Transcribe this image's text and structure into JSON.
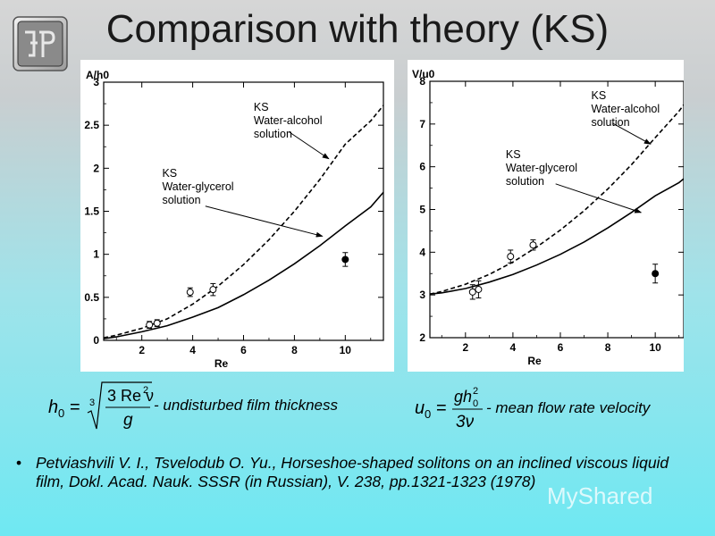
{
  "title": "Comparison with theory (KS)",
  "chart_data": [
    {
      "type": "line",
      "ylabel": "A/h0",
      "xlabel": "Re",
      "xlim": [
        0.5,
        11.5
      ],
      "ylim": [
        0,
        3
      ],
      "xticks": [
        2,
        4,
        6,
        8,
        10
      ],
      "yticks": [
        0,
        0.5,
        1,
        1.5,
        2,
        2.5,
        3
      ],
      "ytick_labels": [
        "0",
        "0.5",
        "1",
        "1.5",
        "2",
        "2.5",
        "3"
      ],
      "series": [
        {
          "style": "dashed",
          "x": [
            0.5,
            1,
            2,
            3,
            4,
            5,
            6,
            7,
            8,
            9,
            10,
            11,
            11.5
          ],
          "y": [
            0.03,
            0.06,
            0.14,
            0.25,
            0.42,
            0.63,
            0.88,
            1.17,
            1.5,
            1.87,
            2.28,
            2.55,
            2.73
          ]
        },
        {
          "style": "solid",
          "x": [
            0.5,
            1,
            2,
            3,
            4,
            5,
            6,
            7,
            8,
            9,
            10,
            11,
            11.5
          ],
          "y": [
            0.02,
            0.04,
            0.1,
            0.17,
            0.27,
            0.38,
            0.53,
            0.7,
            0.89,
            1.1,
            1.33,
            1.55,
            1.72
          ]
        }
      ],
      "points_open": [
        {
          "x": 2.3,
          "y": 0.18,
          "err": 0.04
        },
        {
          "x": 2.6,
          "y": 0.2,
          "err": 0.04
        },
        {
          "x": 3.9,
          "y": 0.56,
          "err": 0.05
        },
        {
          "x": 4.8,
          "y": 0.59,
          "err": 0.07
        }
      ],
      "points_filled": [
        {
          "x": 10.0,
          "y": 0.94,
          "err": 0.08
        }
      ],
      "annotations": [
        {
          "lines": [
            "KS",
            "Water-alcohol",
            "solution"
          ],
          "x": 6.4,
          "y": 2.67,
          "ax": 7.8,
          "ay": 2.42,
          "tx": 9.35,
          "ty": 2.11
        },
        {
          "lines": [
            "KS",
            "Water-glycerol",
            "solution"
          ],
          "x": 2.8,
          "y": 1.9,
          "ax": 4.5,
          "ay": 1.56,
          "tx": 9.1,
          "ty": 1.21
        }
      ]
    },
    {
      "type": "line",
      "ylabel": "V/u0",
      "xlabel": "Re",
      "xlim": [
        0.5,
        11.2
      ],
      "ylim": [
        2,
        8
      ],
      "xticks": [
        2,
        4,
        6,
        8,
        10
      ],
      "yticks": [
        2,
        3,
        4,
        5,
        6,
        7,
        8
      ],
      "ytick_labels": [
        "2",
        "3",
        "4",
        "5",
        "6",
        "7",
        "8"
      ],
      "series": [
        {
          "style": "dashed",
          "x": [
            0.5,
            1,
            2,
            3,
            4,
            5,
            6,
            7,
            8,
            9,
            10,
            11,
            11.2
          ],
          "y": [
            3.02,
            3.08,
            3.25,
            3.48,
            3.77,
            4.12,
            4.52,
            4.97,
            5.48,
            6.05,
            6.68,
            7.3,
            7.45
          ]
        },
        {
          "style": "solid",
          "x": [
            0.5,
            1,
            2,
            3,
            4,
            5,
            6,
            7,
            8,
            9,
            10,
            11,
            11.2
          ],
          "y": [
            3.02,
            3.05,
            3.15,
            3.3,
            3.48,
            3.7,
            3.95,
            4.24,
            4.57,
            4.93,
            5.32,
            5.63,
            5.72
          ]
        }
      ],
      "points_open": [
        {
          "x": 2.3,
          "y": 3.07,
          "err": 0.17
        },
        {
          "x": 2.55,
          "y": 3.13,
          "err": 0.2
        },
        {
          "x": 3.9,
          "y": 3.9,
          "err": 0.15
        },
        {
          "x": 4.85,
          "y": 4.17,
          "err": 0.12
        }
      ],
      "points_filled": [
        {
          "x": 10.0,
          "y": 3.5,
          "err": 0.22
        }
      ],
      "annotations": [
        {
          "lines": [
            "KS",
            "Water-alcohol",
            "solution"
          ],
          "x": 7.3,
          "y": 7.58,
          "ax": 8.2,
          "ay": 7.02,
          "tx": 9.8,
          "ty": 6.53
        },
        {
          "lines": [
            "KS",
            "Water-glycerol",
            "solution"
          ],
          "x": 3.7,
          "y": 6.2,
          "ax": 5.8,
          "ay": 5.6,
          "tx": 9.4,
          "ty": 4.93
        }
      ]
    }
  ],
  "formulas": {
    "left": {
      "lhs": "h",
      "lhs_sub": "0",
      "eq": "=",
      "root_index": "3",
      "numerator": "3 Re ν",
      "numerator_sup": "2",
      "denominator": "g",
      "caption": "- undisturbed film thickness"
    },
    "right": {
      "lhs": "u",
      "lhs_sub": "0",
      "eq": "=",
      "numerator": "gh",
      "numerator_sub": "0",
      "numerator_sup": "2",
      "denominator": "3ν",
      "caption": "- mean flow rate velocity"
    }
  },
  "reference": {
    "bullet": "•",
    "text": "Petviashvili V. I., Tsvelodub O. Yu., Horseshoe-shaped solitons on an inclined viscous liquid film, Dokl. Acad. Nauk. SSSR (in Russian), V. 238, pp.1321-1323 (1978)"
  },
  "watermark": "MyShared"
}
